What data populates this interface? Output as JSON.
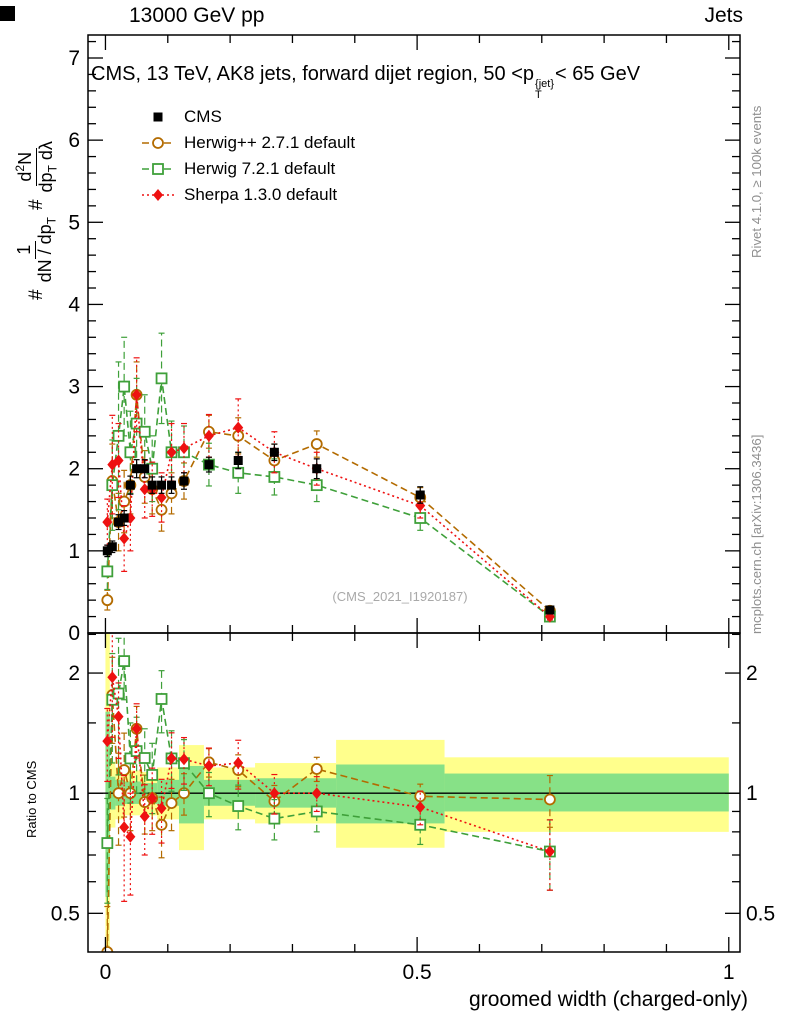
{
  "header": {
    "left": "13000 GeV pp",
    "right": "Jets"
  },
  "panel_title": {
    "prefix": "CMS, 13 TeV, AK8 jets, forward dijet region, 50 <p",
    "sup": "{jet}",
    "sub": "T",
    "suffix": "< 65 GeV"
  },
  "watermark": "(CMS_2021_I1920187)",
  "side_labels": {
    "ratio_axis": "Ratio to CMS",
    "rivet": "Rivet 4.1.0, ≥ 100k events",
    "mcplots": "mcplots.cern.ch [arXiv:1306.3436]"
  },
  "y_axis_label": {
    "hash1": "#",
    "f1_num": "1",
    "f1_den_a": "dN / dp",
    "f1_den_sub": "T",
    "hash2": "#",
    "f2_num_a": "d",
    "f2_num_sup": "2",
    "f2_num_b": "N",
    "f2_den_a": "dp",
    "f2_den_sub": "T",
    "f2_den_b": " dλ"
  },
  "chart_data": {
    "type": "line",
    "title": "CMS, 13 TeV, AK8 jets, forward dijet region, 50 < pT{jet} < 65 GeV",
    "xlabel": "groomed width (charged-only)",
    "ylabel": "1/(dN/dpT) d²N/(dpT dλ)",
    "ratio_label": "Ratio to CMS",
    "legend_position": "top-left",
    "grid": false,
    "x_axis": {
      "min": -0.028,
      "max": 1.018,
      "ticks": [
        0,
        0.5,
        1
      ],
      "tick_labels": [
        "0",
        "0.5",
        "1"
      ],
      "minor_ticks": [
        0.1,
        0.2,
        0.3,
        0.4,
        0.6,
        0.7,
        0.8,
        0.9
      ]
    },
    "main_axis": {
      "min": 0,
      "max": 7.28,
      "ticks": [
        0,
        1,
        2,
        3,
        4,
        5,
        6,
        7
      ],
      "tick_labels": [
        "0",
        "1",
        "2",
        "3",
        "4",
        "5",
        "6",
        "7"
      ],
      "minor_step": 0.2
    },
    "ratio_axis": {
      "min": 0.4,
      "max": 2.52,
      "scale": "log",
      "ticks": [
        0.5,
        1,
        2
      ],
      "tick_labels": [
        "0.5",
        "1",
        "2"
      ],
      "minor_ticks": [
        0.6,
        0.7,
        0.8,
        0.9,
        1.5,
        2.5
      ],
      "reference": 1
    },
    "x": [
      0.003,
      0.011,
      0.021,
      0.03,
      0.04,
      0.05,
      0.063,
      0.075,
      0.09,
      0.106,
      0.126,
      0.166,
      0.213,
      0.271,
      0.339,
      0.505,
      0.713
    ],
    "series": [
      {
        "name": "CMS",
        "marker": "filled-square",
        "line": "none",
        "color": "#000000",
        "values": [
          1.0,
          1.05,
          1.35,
          1.4,
          1.8,
          2.0,
          2.0,
          1.8,
          1.8,
          1.8,
          1.85,
          2.05,
          2.1,
          2.2,
          2.0,
          1.68,
          0.28
        ],
        "errors": [
          0.07,
          0.07,
          0.09,
          0.09,
          0.11,
          0.11,
          0.11,
          0.1,
          0.1,
          0.1,
          0.1,
          0.09,
          0.1,
          0.1,
          0.12,
          0.1,
          0.03
        ]
      },
      {
        "name": "Herwig++ 2.7.1 default",
        "marker": "open-circle",
        "line": "dashed",
        "color": "#b36b00",
        "values": [
          0.4,
          1.85,
          1.35,
          1.6,
          1.8,
          2.9,
          1.9,
          1.75,
          1.5,
          1.7,
          1.85,
          2.45,
          2.4,
          2.1,
          2.3,
          1.65,
          0.27
        ],
        "errors": [
          0.12,
          0.45,
          0.35,
          0.38,
          0.35,
          0.4,
          0.32,
          0.3,
          0.26,
          0.25,
          0.22,
          0.2,
          0.22,
          0.2,
          0.16,
          0.12,
          0.04
        ]
      },
      {
        "name": "Herwig 7.2.1 default",
        "marker": "open-square",
        "line": "dashed",
        "color": "#3fa03a",
        "values": [
          0.75,
          1.8,
          2.4,
          3.0,
          2.2,
          2.55,
          2.45,
          2.0,
          3.1,
          2.2,
          2.2,
          2.05,
          1.95,
          1.9,
          1.8,
          1.4,
          0.2
        ],
        "errors": [
          0.22,
          0.55,
          0.9,
          0.6,
          0.5,
          0.55,
          0.45,
          0.4,
          0.55,
          0.38,
          0.32,
          0.26,
          0.25,
          0.22,
          0.2,
          0.15,
          0.04
        ]
      },
      {
        "name": "Sherpa 1.3.0 default",
        "marker": "filled-diamond",
        "line": "dotted",
        "color": "#ee1111",
        "values": [
          1.35,
          2.05,
          2.1,
          1.15,
          1.4,
          2.9,
          1.75,
          1.75,
          1.65,
          2.2,
          2.25,
          2.4,
          2.5,
          2.2,
          2.0,
          1.55,
          0.2
        ],
        "errors": [
          0.28,
          0.6,
          0.45,
          0.4,
          0.4,
          0.45,
          0.35,
          0.33,
          0.3,
          0.35,
          0.3,
          0.26,
          0.35,
          0.25,
          0.2,
          0.15,
          0.04
        ]
      }
    ],
    "band_colors": {
      "outer": "#ffff8c",
      "inner": "#87e187"
    },
    "ratio_bands": [
      {
        "x0": 0.0,
        "x1": 0.007,
        "outer": [
          0.4,
          2.52
        ],
        "inner": [
          0.55,
          1.6
        ]
      },
      {
        "x0": 0.007,
        "x1": 0.016,
        "outer": [
          0.82,
          1.2
        ],
        "inner": [
          0.91,
          1.1
        ]
      },
      {
        "x0": 0.016,
        "x1": 0.03,
        "outer": [
          0.86,
          1.16
        ],
        "inner": [
          0.93,
          1.08
        ]
      },
      {
        "x0": 0.03,
        "x1": 0.057,
        "outer": [
          0.88,
          1.14
        ],
        "inner": [
          0.94,
          1.07
        ]
      },
      {
        "x0": 0.057,
        "x1": 0.083,
        "outer": [
          0.88,
          1.13
        ],
        "inner": [
          0.94,
          1.06
        ]
      },
      {
        "x0": 0.083,
        "x1": 0.118,
        "outer": [
          0.86,
          1.16
        ],
        "inner": [
          0.93,
          1.08
        ]
      },
      {
        "x0": 0.118,
        "x1": 0.158,
        "outer": [
          0.72,
          1.32
        ],
        "inner": [
          0.84,
          1.17
        ]
      },
      {
        "x0": 0.158,
        "x1": 0.24,
        "outer": [
          0.86,
          1.16
        ],
        "inner": [
          0.93,
          1.08
        ]
      },
      {
        "x0": 0.24,
        "x1": 0.37,
        "outer": [
          0.84,
          1.19
        ],
        "inner": [
          0.92,
          1.09
        ]
      },
      {
        "x0": 0.37,
        "x1": 0.544,
        "outer": [
          0.73,
          1.36
        ],
        "inner": [
          0.84,
          1.18
        ]
      },
      {
        "x0": 0.544,
        "x1": 1.0,
        "outer": [
          0.8,
          1.23
        ],
        "inner": [
          0.9,
          1.12
        ]
      }
    ]
  }
}
